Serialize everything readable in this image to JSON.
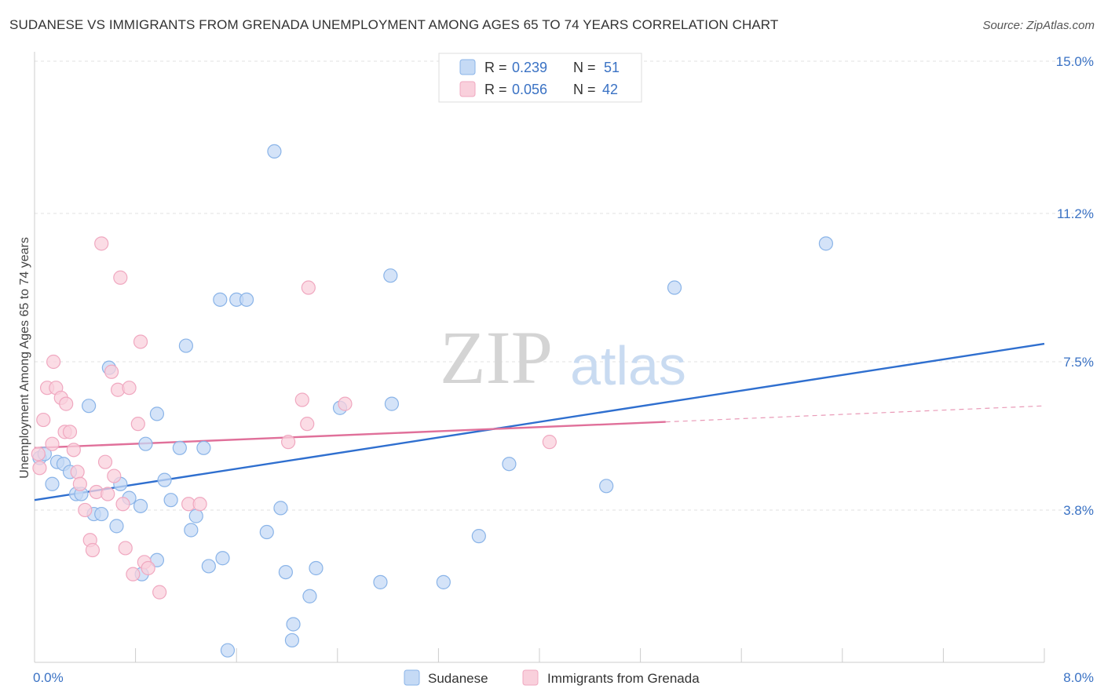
{
  "title": "SUDANESE VS IMMIGRANTS FROM GRENADA UNEMPLOYMENT AMONG AGES 65 TO 74 YEARS CORRELATION CHART",
  "source": "Source: ZipAtlas.com",
  "watermark": {
    "zip": "ZIP",
    "atlas": "atlas"
  },
  "legend_top": [
    {
      "r_label": "R =",
      "r_value": "0.239",
      "n_label": "N =",
      "n_value": "51"
    },
    {
      "r_label": "R =",
      "r_value": "0.056",
      "n_label": "N =",
      "n_value": "42"
    }
  ],
  "chart_data": {
    "type": "scatter",
    "title": "SUDANESE VS IMMIGRANTS FROM GRENADA UNEMPLOYMENT AMONG AGES 65 TO 74 YEARS CORRELATION CHART",
    "xlabel": "",
    "ylabel": "Unemployment Among Ages 65 to 74 years",
    "xlim": [
      0,
      8.0
    ],
    "ylim": [
      0,
      15.0
    ],
    "x_tick_labels": [
      "0.0%",
      "8.0%"
    ],
    "y_ticks": [
      3.8,
      7.5,
      11.2,
      15.0
    ],
    "y_tick_labels": [
      "3.8%",
      "7.5%",
      "11.2%",
      "15.0%"
    ],
    "grid": true,
    "legend_position": "bottom",
    "series": [
      {
        "name": "Sudanese",
        "color": "#8ab4e8",
        "fill": "#c5daf5",
        "line_color": "#2f6fcf",
        "trend": {
          "x": [
            0.0,
            8.0
          ],
          "y": [
            4.05,
            7.95
          ]
        },
        "points": [
          [
            0.04,
            5.1
          ],
          [
            0.08,
            5.2
          ],
          [
            0.14,
            4.45
          ],
          [
            0.18,
            5.0
          ],
          [
            0.23,
            4.95
          ],
          [
            0.28,
            4.75
          ],
          [
            0.33,
            4.2
          ],
          [
            0.37,
            4.2
          ],
          [
            0.43,
            6.4
          ],
          [
            0.47,
            3.7
          ],
          [
            0.53,
            3.7
          ],
          [
            0.59,
            7.35
          ],
          [
            0.65,
            3.4
          ],
          [
            0.68,
            4.45
          ],
          [
            0.75,
            4.1
          ],
          [
            0.84,
            3.9
          ],
          [
            0.88,
            5.45
          ],
          [
            0.97,
            6.2
          ],
          [
            1.03,
            4.55
          ],
          [
            1.08,
            4.05
          ],
          [
            1.15,
            5.35
          ],
          [
            1.2,
            7.9
          ],
          [
            1.24,
            3.3
          ],
          [
            1.28,
            3.65
          ],
          [
            1.34,
            5.35
          ],
          [
            1.38,
            2.4
          ],
          [
            1.49,
            2.6
          ],
          [
            1.47,
            9.05
          ],
          [
            1.6,
            9.05
          ],
          [
            1.68,
            9.05
          ],
          [
            1.9,
            12.75
          ],
          [
            1.84,
            3.25
          ],
          [
            1.95,
            3.85
          ],
          [
            1.99,
            2.25
          ],
          [
            2.05,
            0.95
          ],
          [
            2.18,
            1.65
          ],
          [
            2.23,
            2.35
          ],
          [
            2.04,
            0.55
          ],
          [
            1.53,
            0.3
          ],
          [
            2.42,
            6.35
          ],
          [
            2.74,
            2.0
          ],
          [
            2.83,
            6.45
          ],
          [
            2.82,
            9.65
          ],
          [
            3.24,
            2.0
          ],
          [
            3.52,
            3.15
          ],
          [
            3.76,
            4.95
          ],
          [
            4.53,
            4.4
          ],
          [
            5.07,
            9.35
          ],
          [
            6.27,
            10.45
          ],
          [
            0.85,
            2.2
          ],
          [
            0.97,
            2.55
          ]
        ]
      },
      {
        "name": "Immigrants from Grenada",
        "color": "#f0a8c0",
        "fill": "#f9d0dc",
        "line_color": "#e0709a",
        "trend": {
          "x": [
            0.0,
            5.0
          ],
          "y": [
            5.35,
            6.0
          ]
        },
        "trend_ext": {
          "x": [
            5.0,
            8.0
          ],
          "y": [
            6.0,
            6.4
          ]
        },
        "points": [
          [
            0.03,
            5.2
          ],
          [
            0.04,
            4.85
          ],
          [
            0.07,
            6.05
          ],
          [
            0.1,
            6.85
          ],
          [
            0.14,
            5.45
          ],
          [
            0.15,
            7.5
          ],
          [
            0.17,
            6.85
          ],
          [
            0.21,
            6.6
          ],
          [
            0.24,
            5.75
          ],
          [
            0.25,
            6.45
          ],
          [
            0.28,
            5.75
          ],
          [
            0.31,
            5.3
          ],
          [
            0.34,
            4.75
          ],
          [
            0.36,
            4.45
          ],
          [
            0.4,
            3.8
          ],
          [
            0.44,
            3.05
          ],
          [
            0.46,
            2.8
          ],
          [
            0.49,
            4.25
          ],
          [
            0.53,
            10.45
          ],
          [
            0.56,
            5.0
          ],
          [
            0.58,
            4.2
          ],
          [
            0.61,
            7.25
          ],
          [
            0.63,
            4.65
          ],
          [
            0.66,
            6.8
          ],
          [
            0.68,
            9.6
          ],
          [
            0.7,
            3.95
          ],
          [
            0.72,
            2.85
          ],
          [
            0.75,
            6.85
          ],
          [
            0.78,
            2.2
          ],
          [
            0.82,
            5.95
          ],
          [
            0.84,
            8.0
          ],
          [
            0.87,
            2.5
          ],
          [
            0.9,
            2.35
          ],
          [
            0.99,
            1.75
          ],
          [
            1.22,
            3.95
          ],
          [
            1.31,
            3.95
          ],
          [
            2.01,
            5.5
          ],
          [
            2.12,
            6.55
          ],
          [
            2.16,
            5.95
          ],
          [
            2.17,
            9.35
          ],
          [
            2.46,
            6.45
          ],
          [
            4.08,
            5.5
          ]
        ]
      }
    ]
  },
  "legend_bottom": [
    {
      "label": "Sudanese"
    },
    {
      "label": "Immigrants from Grenada"
    }
  ]
}
